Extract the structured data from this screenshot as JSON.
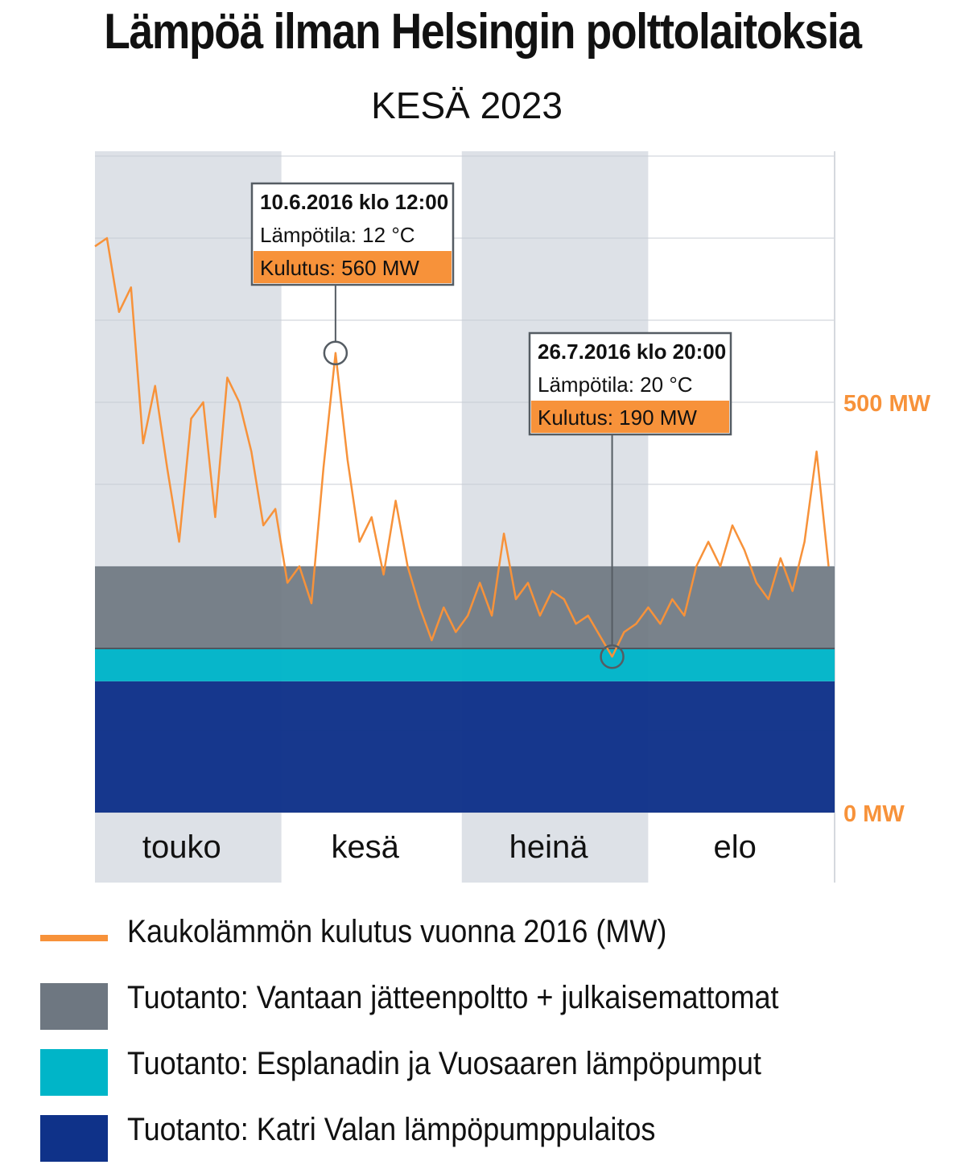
{
  "header": {
    "title": "Lämpöä ilman Helsingin polttolaitoksia",
    "subtitle": "KESÄ 2023"
  },
  "colors": {
    "consumption": "#f7923a",
    "vantaa": "#6e7781",
    "esplanadi": "#00b5c8",
    "katri_vala": "#0f3289",
    "month_band": "#dde1e7",
    "axis_label": "#f7923a"
  },
  "chart_data": {
    "type": "area",
    "title": "Lämpöä ilman Helsingin polttolaitoksia",
    "subtitle": "KESÄ 2023",
    "months": [
      "touko",
      "kesä",
      "heinä",
      "elo"
    ],
    "y_ticks": [
      {
        "value": 500,
        "label": "500 MW"
      },
      {
        "value": 0,
        "label": "0 MW"
      }
    ],
    "ylim": [
      0,
      700
    ],
    "grid": true,
    "legend_position": "bottom",
    "stacked_production": [
      {
        "name": "Tuotanto: Katri Valan lämpöpumppulaitos",
        "value_mw": 160
      },
      {
        "name": "Tuotanto: Esplanadin ja Vuosaaren lämpöpumput",
        "value_mw": 40
      },
      {
        "name": "Tuotanto: Vantaan jätteenpoltto + julkaisemattomat",
        "value_mw": 100
      }
    ],
    "consumption_series": {
      "name": "Kaukolämmön kulutus vuonna 2016 (MW)",
      "points": [
        [
          "2016-05-01",
          690
        ],
        [
          "2016-05-03",
          700
        ],
        [
          "2016-05-05",
          610
        ],
        [
          "2016-05-07",
          640
        ],
        [
          "2016-05-09",
          450
        ],
        [
          "2016-05-11",
          520
        ],
        [
          "2016-05-13",
          420
        ],
        [
          "2016-05-15",
          330
        ],
        [
          "2016-05-17",
          480
        ],
        [
          "2016-05-19",
          500
        ],
        [
          "2016-05-21",
          360
        ],
        [
          "2016-05-23",
          530
        ],
        [
          "2016-05-25",
          500
        ],
        [
          "2016-05-27",
          440
        ],
        [
          "2016-05-29",
          350
        ],
        [
          "2016-05-31",
          370
        ],
        [
          "2016-06-02",
          280
        ],
        [
          "2016-06-04",
          300
        ],
        [
          "2016-06-06",
          255
        ],
        [
          "2016-06-08",
          420
        ],
        [
          "2016-06-10",
          560
        ],
        [
          "2016-06-12",
          430
        ],
        [
          "2016-06-14",
          330
        ],
        [
          "2016-06-16",
          360
        ],
        [
          "2016-06-18",
          290
        ],
        [
          "2016-06-20",
          380
        ],
        [
          "2016-06-22",
          300
        ],
        [
          "2016-06-24",
          250
        ],
        [
          "2016-06-26",
          210
        ],
        [
          "2016-06-28",
          250
        ],
        [
          "2016-06-30",
          220
        ],
        [
          "2016-07-02",
          240
        ],
        [
          "2016-07-04",
          280
        ],
        [
          "2016-07-06",
          240
        ],
        [
          "2016-07-08",
          340
        ],
        [
          "2016-07-10",
          260
        ],
        [
          "2016-07-12",
          280
        ],
        [
          "2016-07-14",
          240
        ],
        [
          "2016-07-16",
          270
        ],
        [
          "2016-07-18",
          260
        ],
        [
          "2016-07-20",
          230
        ],
        [
          "2016-07-22",
          240
        ],
        [
          "2016-07-24",
          215
        ],
        [
          "2016-07-26",
          190
        ],
        [
          "2016-07-28",
          220
        ],
        [
          "2016-07-30",
          230
        ],
        [
          "2016-08-01",
          250
        ],
        [
          "2016-08-03",
          230
        ],
        [
          "2016-08-05",
          260
        ],
        [
          "2016-08-07",
          240
        ],
        [
          "2016-08-09",
          300
        ],
        [
          "2016-08-11",
          330
        ],
        [
          "2016-08-13",
          300
        ],
        [
          "2016-08-15",
          350
        ],
        [
          "2016-08-17",
          320
        ],
        [
          "2016-08-19",
          280
        ],
        [
          "2016-08-21",
          260
        ],
        [
          "2016-08-23",
          310
        ],
        [
          "2016-08-25",
          270
        ],
        [
          "2016-08-27",
          330
        ],
        [
          "2016-08-29",
          440
        ],
        [
          "2016-08-31",
          300
        ]
      ]
    },
    "annotations": [
      {
        "x": "2016-06-10",
        "y": 560,
        "date_label": "10.6.2016 klo 12:00",
        "temp_label": "Lämpötila:  12 °C",
        "consumption_label": "Kulutus: 560 MW"
      },
      {
        "x": "2016-07-26",
        "y": 190,
        "date_label": "26.7.2016 klo 20:00",
        "temp_label": "Lämpötila:  20 °C",
        "consumption_label": "Kulutus: 190 MW"
      }
    ]
  },
  "legend": [
    {
      "kind": "line",
      "color": "#f7923a",
      "label": "Kaukolämmön kulutus vuonna 2016 (MW)"
    },
    {
      "kind": "box",
      "color": "#6e7781",
      "label": "Tuotanto: Vantaan jätteenpoltto + julkaisemattomat"
    },
    {
      "kind": "box",
      "color": "#00b5c8",
      "label": "Tuotanto: Esplanadin ja Vuosaaren lämpöpumput"
    },
    {
      "kind": "box",
      "color": "#0f3289",
      "label": "Tuotanto: Katri Valan lämpöpumppulaitos"
    }
  ]
}
